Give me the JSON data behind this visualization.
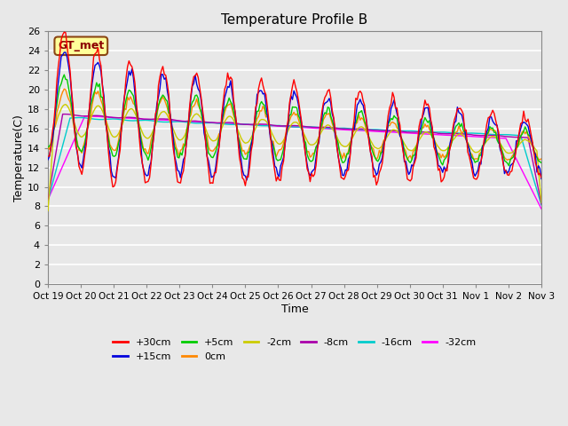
{
  "title": "Temperature Profile B",
  "xlabel": "Time",
  "ylabel": "Temperature(C)",
  "ylim": [
    0,
    26
  ],
  "yticks": [
    0,
    2,
    4,
    6,
    8,
    10,
    12,
    14,
    16,
    18,
    20,
    22,
    24,
    26
  ],
  "background_color": "#e8e8e8",
  "plot_bg_color": "#e8e8e8",
  "grid_color": "#ffffff",
  "annotation_label": "GT_met",
  "annotation_box_color": "#ffff99",
  "annotation_border_color": "#8B4513",
  "series": [
    {
      "label": "+30cm",
      "color": "#ff0000",
      "zorder": 8
    },
    {
      "label": "+15cm",
      "color": "#0000dd",
      "zorder": 7
    },
    {
      "label": "+5cm",
      "color": "#00cc00",
      "zorder": 6
    },
    {
      "label": "0cm",
      "color": "#ff8800",
      "zorder": 5
    },
    {
      "label": "-2cm",
      "color": "#cccc00",
      "zorder": 4
    },
    {
      "label": "-8cm",
      "color": "#aa00aa",
      "zorder": 3
    },
    {
      "label": "-16cm",
      "color": "#00cccc",
      "zorder": 2
    },
    {
      "label": "-32cm",
      "color": "#ff00ff",
      "zorder": 1
    }
  ],
  "xtick_labels": [
    "Oct 19",
    "Oct 20",
    "Oct 21",
    "Oct 22",
    "Oct 23",
    "Oct 24",
    "Oct 25",
    "Oct 26",
    "Oct 27",
    "Oct 28",
    "Oct 29",
    "Oct 30",
    "Oct 31",
    "Nov 1",
    "Nov 2",
    "Nov 3"
  ],
  "num_points": 336
}
